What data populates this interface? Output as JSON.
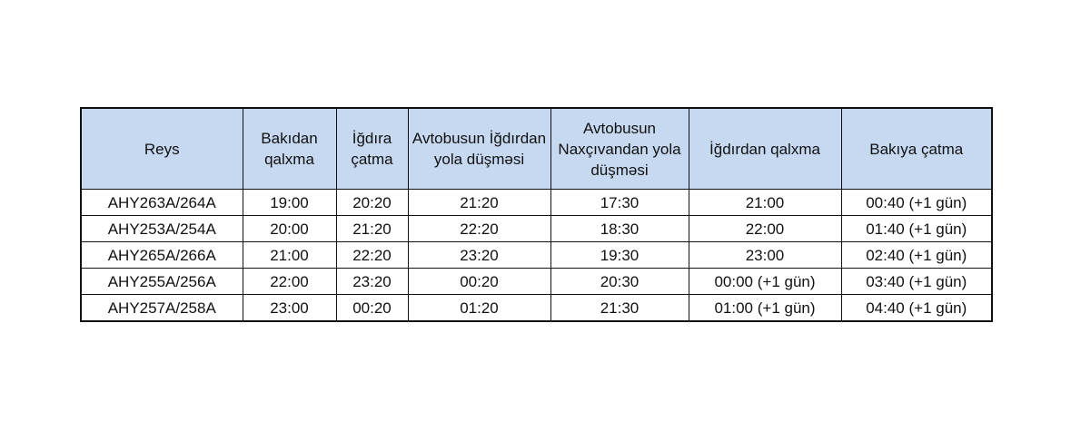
{
  "table": {
    "headers": [
      "Reys",
      "Bakıdan qalxma",
      "İğdıra çatma",
      "Avtobusun İğdırdan yola düşməsi",
      "Avtobusun Naxçıvandan yola düşməsi",
      "İğdırdan qalxma",
      "Bakıya çatma"
    ],
    "rows": [
      [
        "AHY263A/264A",
        "19:00",
        "20:20",
        "21:20",
        "17:30",
        "21:00",
        "00:40 (+1 gün)"
      ],
      [
        "AHY253A/254A",
        "20:00",
        "21:20",
        "22:20",
        "18:30",
        "22:00",
        "01:40 (+1 gün)"
      ],
      [
        "AHY265A/266A",
        "21:00",
        "22:20",
        "23:20",
        "19:30",
        "23:00",
        "02:40 (+1 gün)"
      ],
      [
        "AHY255A/256A",
        "22:00",
        "23:20",
        "00:20",
        "20:30",
        "00:00 (+1 gün)",
        "03:40 (+1 gün)"
      ],
      [
        "AHY257A/258A",
        "23:00",
        "00:20",
        "01:20",
        "21:30",
        "01:00 (+1 gün)",
        "04:40 (+1 gün)"
      ]
    ],
    "header_color": "#c6d9f1"
  }
}
